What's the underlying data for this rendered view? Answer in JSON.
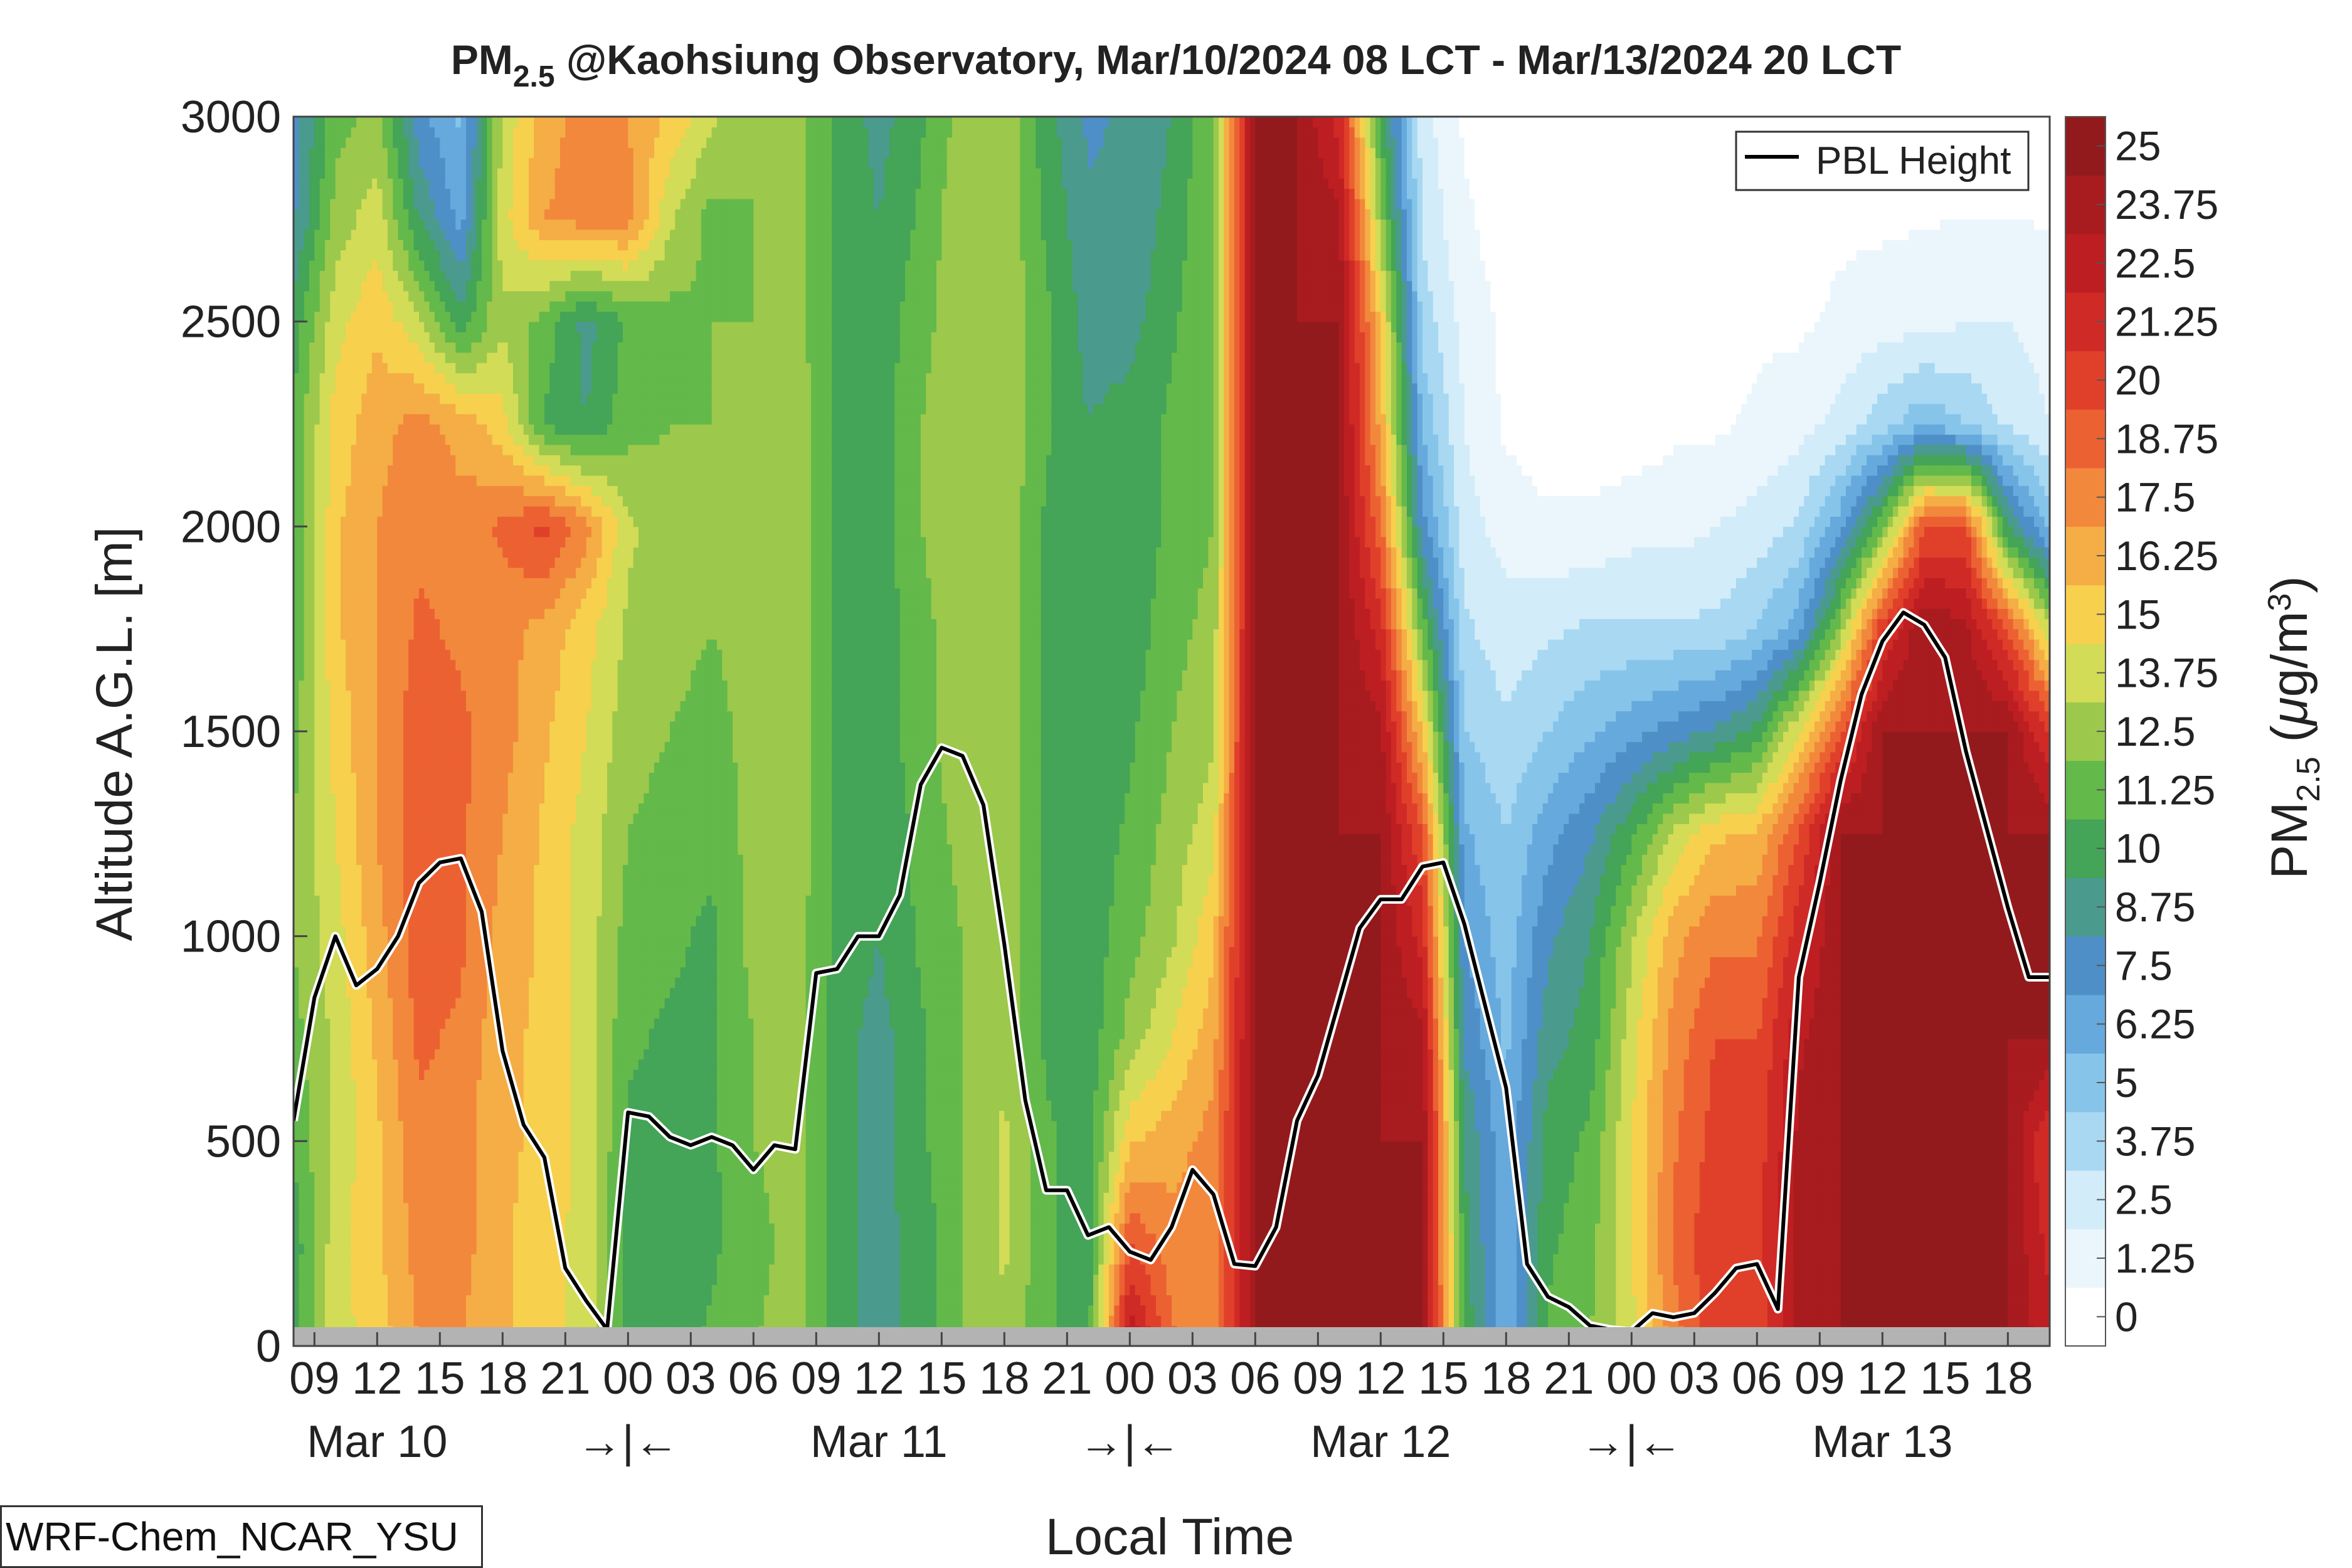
{
  "chart_data": {
    "type": "heatmap",
    "title_main": "PM",
    "title_sub": "2.5",
    "title_rest": " @Kaohsiung Observatory, Mar/10/2024 08 LCT - Mar/13/2024 20 LCT",
    "xlabel": "Local Time",
    "ylabel": "Altitude A.G.L. [m]",
    "ylim": [
      0,
      3000
    ],
    "yticks": [
      0,
      500,
      1000,
      1500,
      2000,
      2500,
      3000
    ],
    "xlim": [
      0,
      84
    ],
    "x_hour_ticks": [
      {
        "x": 1,
        "label": "09"
      },
      {
        "x": 4,
        "label": "12"
      },
      {
        "x": 7,
        "label": "15"
      },
      {
        "x": 10,
        "label": "18"
      },
      {
        "x": 13,
        "label": "21"
      },
      {
        "x": 16,
        "label": "00"
      },
      {
        "x": 19,
        "label": "03"
      },
      {
        "x": 22,
        "label": "06"
      },
      {
        "x": 25,
        "label": "09"
      },
      {
        "x": 28,
        "label": "12"
      },
      {
        "x": 31,
        "label": "15"
      },
      {
        "x": 34,
        "label": "18"
      },
      {
        "x": 37,
        "label": "21"
      },
      {
        "x": 40,
        "label": "00"
      },
      {
        "x": 43,
        "label": "03"
      },
      {
        "x": 46,
        "label": "06"
      },
      {
        "x": 49,
        "label": "09"
      },
      {
        "x": 52,
        "label": "12"
      },
      {
        "x": 55,
        "label": "15"
      },
      {
        "x": 58,
        "label": "18"
      },
      {
        "x": 61,
        "label": "21"
      },
      {
        "x": 64,
        "label": "00"
      },
      {
        "x": 67,
        "label": "03"
      },
      {
        "x": 70,
        "label": "06"
      },
      {
        "x": 73,
        "label": "09"
      },
      {
        "x": 76,
        "label": "12"
      },
      {
        "x": 79,
        "label": "15"
      },
      {
        "x": 82,
        "label": "18"
      }
    ],
    "date_labels": [
      {
        "x": 4,
        "label": "Mar 10"
      },
      {
        "x": 16,
        "label": "→|←"
      },
      {
        "x": 28,
        "label": "Mar 11"
      },
      {
        "x": 40,
        "label": "→|←"
      },
      {
        "x": 52,
        "label": "Mar 12"
      },
      {
        "x": 64,
        "label": "→|←"
      },
      {
        "x": 76,
        "label": "Mar 13"
      }
    ],
    "colorbar": {
      "label_main": "PM",
      "label_sub": "2.5",
      "label_unit_open": " (",
      "label_unit_mu": "μ",
      "label_unit_g": "g/m",
      "label_unit_sup": "3",
      "label_unit_close": ")",
      "levels": [
        0,
        1.25,
        2.5,
        3.75,
        5,
        6.25,
        7.5,
        8.75,
        10,
        11.25,
        12.5,
        13.75,
        15,
        16.25,
        17.5,
        18.75,
        20,
        21.25,
        22.5,
        23.75,
        25
      ],
      "tick_labels": [
        "0",
        "1.25",
        "2.5",
        "3.75",
        "5",
        "6.25",
        "7.5",
        "8.75",
        "10",
        "11.25",
        "12.5",
        "13.75",
        "15",
        "16.25",
        "17.5",
        "18.75",
        "20",
        "21.25",
        "22.5",
        "23.75",
        "25"
      ],
      "colors": [
        "#ffffff",
        "#eaf6fc",
        "#d2ecf9",
        "#a8d8f2",
        "#86c4ea",
        "#66a9dc",
        "#4e8fc8",
        "#4b9a8e",
        "#44a457",
        "#63b94a",
        "#9cc84c",
        "#d2dc56",
        "#f7d04e",
        "#f5ad45",
        "#f2883c",
        "#ec6132",
        "#e0402a",
        "#d02a26",
        "#bd1e22",
        "#a81b1f",
        "#931a1c"
      ]
    },
    "legend": {
      "label": "PBL Height",
      "placement": "top-right"
    },
    "pbl_height": {
      "x": [
        0,
        1,
        2,
        3,
        4,
        5,
        6,
        7,
        8,
        9,
        10,
        11,
        12,
        13,
        14,
        15,
        16,
        17,
        18,
        19,
        20,
        21,
        22,
        23,
        24,
        25,
        26,
        27,
        28,
        29,
        30,
        31,
        32,
        33,
        34,
        35,
        36,
        37,
        38,
        39,
        40,
        41,
        42,
        43,
        44,
        45,
        46,
        47,
        48,
        49,
        50,
        51,
        52,
        53,
        54,
        55,
        56,
        57,
        58,
        59,
        60,
        61,
        62,
        63,
        64,
        65,
        66,
        67,
        68,
        69,
        70,
        71,
        72,
        73,
        74,
        75,
        76,
        77,
        78,
        79,
        80,
        81,
        82,
        83,
        84
      ],
      "y": [
        550,
        850,
        1000,
        880,
        920,
        1000,
        1130,
        1180,
        1190,
        1060,
        720,
        540,
        460,
        190,
        110,
        40,
        570,
        560,
        510,
        490,
        510,
        490,
        430,
        490,
        480,
        910,
        920,
        1000,
        1000,
        1100,
        1370,
        1460,
        1440,
        1320,
        980,
        600,
        380,
        380,
        270,
        290,
        230,
        210,
        290,
        430,
        370,
        200,
        195,
        290,
        550,
        660,
        840,
        1020,
        1090,
        1090,
        1170,
        1180,
        1030,
        830,
        630,
        200,
        120,
        95,
        50,
        40,
        35,
        80,
        70,
        80,
        130,
        190,
        200,
        90,
        900,
        1130,
        1380,
        1590,
        1720,
        1790,
        1760,
        1680,
        1450,
        1260,
        1070,
        900,
        900
      ]
    },
    "pm25_field": {
      "x": [
        0,
        2,
        4,
        6,
        8,
        10,
        12,
        14,
        16,
        18,
        20,
        22,
        24,
        26,
        28,
        30,
        32,
        34,
        36,
        38,
        40,
        42,
        44,
        46,
        48,
        50,
        52,
        54,
        56,
        58,
        60,
        62,
        64,
        66,
        68,
        70,
        72,
        74,
        76,
        78,
        80,
        82,
        84
      ],
      "y": [
        0,
        250,
        500,
        750,
        1000,
        1250,
        1500,
        1750,
        2000,
        2250,
        2500,
        2750,
        3000
      ],
      "z": [
        [
          10.5,
          14.5,
          15.5,
          17.5,
          17.5,
          16.5,
          15.5,
          14.5,
          10.5,
          10.5,
          11.5,
          12.5,
          13,
          10.5,
          9.5,
          10.5,
          12.5,
          13.5,
          11.5,
          10.5,
          24,
          19,
          18,
          25,
          25,
          25,
          25,
          25,
          11,
          6.5,
          11.5,
          12.5,
          14.5,
          18,
          21,
          20,
          24,
          25,
          25,
          25,
          25,
          25,
          23
        ],
        [
          10.5,
          14.5,
          16,
          18,
          18,
          16.5,
          15.5,
          14.5,
          10.5,
          10.5,
          11,
          12,
          13,
          10.5,
          9.5,
          10.5,
          12.5,
          14,
          11.5,
          10.5,
          20,
          18,
          18,
          25,
          25,
          25,
          25,
          25,
          10.5,
          6.5,
          11,
          12,
          15,
          19,
          21,
          21,
          24,
          25,
          25,
          25,
          25,
          25,
          22
        ],
        [
          11.5,
          14,
          16,
          18.5,
          18,
          16.5,
          16,
          14.5,
          11,
          10.5,
          11,
          12.5,
          13,
          10.5,
          9.5,
          11,
          12.5,
          14,
          11.5,
          10.5,
          16,
          17,
          18,
          25,
          25,
          25,
          25,
          25,
          10,
          6.5,
          10.5,
          11.5,
          15,
          18.5,
          20.5,
          20.5,
          24,
          25,
          25,
          25,
          25,
          25,
          21
        ],
        [
          12,
          14,
          16.5,
          19,
          18.5,
          16.5,
          16,
          14.5,
          11.5,
          11,
          11,
          12.5,
          13,
          10.5,
          9.5,
          11,
          12.5,
          13.5,
          11,
          10.5,
          13,
          15,
          17,
          25,
          25,
          25,
          25,
          24,
          8.5,
          6,
          9.5,
          10.5,
          14.5,
          18,
          20,
          20,
          23.5,
          25,
          25,
          25,
          25,
          25,
          25
        ],
        [
          12.5,
          14.5,
          17,
          19.5,
          19,
          17,
          16,
          14.5,
          12,
          11.5,
          11,
          13,
          13,
          11,
          10,
          11.5,
          12.5,
          13.5,
          11,
          10.5,
          12,
          13.5,
          16,
          25,
          25,
          25,
          25,
          22,
          7.5,
          5.5,
          8.5,
          10,
          13.5,
          17,
          18.5,
          18.5,
          22,
          25,
          25,
          25,
          25,
          25,
          25
        ],
        [
          12.5,
          15,
          17.5,
          19.5,
          19,
          17.5,
          16,
          14.5,
          12.5,
          12,
          11.5,
          13,
          13.5,
          11,
          10.5,
          11.5,
          13,
          13.5,
          11,
          10.5,
          11.5,
          13,
          14.5,
          25,
          25,
          25,
          25,
          20,
          6.5,
          5,
          7,
          8.5,
          11,
          14,
          16,
          16.5,
          20,
          25,
          25,
          25,
          25,
          25,
          25
        ],
        [
          12,
          15.5,
          17.5,
          19.5,
          19,
          18,
          16.5,
          15,
          13,
          12.5,
          12,
          13,
          13.5,
          11,
          10.5,
          12,
          13.5,
          13.5,
          11,
          10,
          11,
          12.5,
          13.5,
          25,
          25,
          25,
          24,
          16,
          5,
          4,
          5,
          6,
          7,
          8,
          9,
          10.5,
          15,
          20,
          25,
          25,
          25,
          25,
          21
        ],
        [
          11.5,
          16,
          17.5,
          19,
          18.5,
          18,
          17,
          15.5,
          13.5,
          13,
          12.5,
          13,
          13.5,
          11,
          10.5,
          12,
          13.5,
          13.5,
          11,
          10,
          10.5,
          12,
          13,
          25,
          25,
          25,
          22,
          12,
          4,
          3,
          3.5,
          4,
          4,
          4,
          4,
          5,
          7,
          13,
          21,
          25,
          24,
          20,
          14
        ],
        [
          11,
          16,
          17.5,
          18.5,
          18,
          19,
          20.5,
          18,
          14,
          13,
          12.5,
          13,
          13.5,
          11,
          10.5,
          12.5,
          13.5,
          13.5,
          11,
          10,
          10.5,
          11.5,
          12.5,
          25,
          25,
          25,
          19,
          8,
          3,
          2,
          1.5,
          1.5,
          2,
          2,
          2.5,
          3,
          4,
          7,
          12,
          20,
          20,
          10,
          6
        ],
        [
          11.5,
          15.5,
          17,
          18,
          17,
          15.5,
          11,
          10,
          12,
          12.5,
          12.5,
          13,
          13.5,
          11,
          10.5,
          12.5,
          13.5,
          13.5,
          11.5,
          10,
          10.5,
          11.5,
          12.5,
          25,
          25,
          25,
          17,
          6,
          2.5,
          1,
          0.5,
          0.5,
          0.5,
          1,
          1,
          1.5,
          2,
          3,
          4.5,
          6,
          5,
          3.5,
          2.5
        ],
        [
          10.5,
          14.5,
          16,
          14,
          10.5,
          13.5,
          12,
          9.5,
          11.5,
          12,
          12.5,
          12.5,
          13,
          11,
          10.5,
          12,
          13.5,
          13.5,
          11.5,
          9.5,
          9.5,
          11,
          12.5,
          25,
          25,
          25,
          16,
          4.5,
          2,
          1,
          0.3,
          0.3,
          0.3,
          0.5,
          0.5,
          1,
          1,
          1.5,
          2,
          2,
          2.5,
          2.5,
          2
        ],
        [
          8.5,
          13,
          14.5,
          10,
          7,
          14.5,
          17.5,
          18,
          18,
          14,
          12,
          12.5,
          13,
          11,
          10,
          11.5,
          13.5,
          13.5,
          11,
          9,
          9,
          10.5,
          12.5,
          25,
          25,
          24,
          13,
          3.5,
          1.5,
          0.5,
          0.2,
          0.2,
          0.2,
          0.3,
          0.3,
          0.5,
          0.8,
          1,
          1,
          1.2,
          1.2,
          1.2,
          1.2
        ],
        [
          8,
          12,
          13,
          8,
          6,
          14,
          17,
          18,
          17.5,
          16,
          14,
          12.5,
          13,
          11,
          9.5,
          11,
          13,
          13.5,
          10.5,
          8.5,
          9,
          10,
          12.5,
          25,
          25,
          22,
          11,
          3,
          1,
          0.5,
          0.2,
          0.2,
          0.2,
          0.2,
          0.3,
          0.3,
          0.5,
          0.8,
          1,
          1,
          1,
          1,
          1
        ]
      ]
    }
  },
  "footer": {
    "model_name": "WRF-Chem_NCAR_YSU"
  }
}
